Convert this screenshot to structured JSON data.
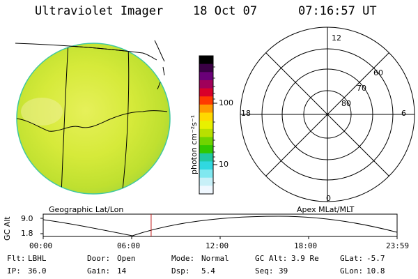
{
  "header": {
    "title": "Ultraviolet Imager",
    "date": "18 Oct 07",
    "time": "07:16:57 UT"
  },
  "colorbar": {
    "unit_label": "photon cm⁻²s⁻¹",
    "ticks": [
      "100",
      "10"
    ],
    "colors": [
      "#000000",
      "#3a0044",
      "#6a0078",
      "#a0005a",
      "#d8002a",
      "#ff3a00",
      "#ff9a00",
      "#ffd800",
      "#e8f000",
      "#b8e000",
      "#70d400",
      "#30c800",
      "#20c8a0",
      "#30d8e0",
      "#80e8f0",
      "#c8f0f8",
      "#f0f8ff"
    ]
  },
  "geographic_panel": {
    "label": "Geographic Lat/Lon"
  },
  "polar_plot": {
    "label": "Apex MLat/MLT",
    "mlt_labels": [
      "12",
      "18",
      "6",
      "0"
    ],
    "lat_labels": [
      "60",
      "70",
      "80"
    ]
  },
  "gc_alt_plot": {
    "ylabel": "GC Alt",
    "y_ticks": [
      "9.0",
      "1.8"
    ],
    "x_ticks": [
      "00:00",
      "06:00",
      "12:00",
      "18:00",
      "23:59"
    ],
    "current_time_fraction": 0.305
  },
  "status": {
    "flt": {
      "label": "Flt:",
      "value": "LBHL"
    },
    "ip": {
      "label": "IP:",
      "value": "36.0"
    },
    "door": {
      "label": "Door:",
      "value": "Open"
    },
    "gain": {
      "label": "Gain:",
      "value": "14"
    },
    "mode": {
      "label": "Mode:",
      "value": "Normal"
    },
    "dsp": {
      "label": "Dsp:",
      "value": "5.4"
    },
    "gc_alt": {
      "label": "GC Alt:",
      "value": "3.9 Re"
    },
    "seq": {
      "label": "Seq:",
      "value": "39"
    },
    "glat": {
      "label": "GLat:",
      "value": "-5.7"
    },
    "glon": {
      "label": "GLon:",
      "value": "10.8"
    }
  }
}
